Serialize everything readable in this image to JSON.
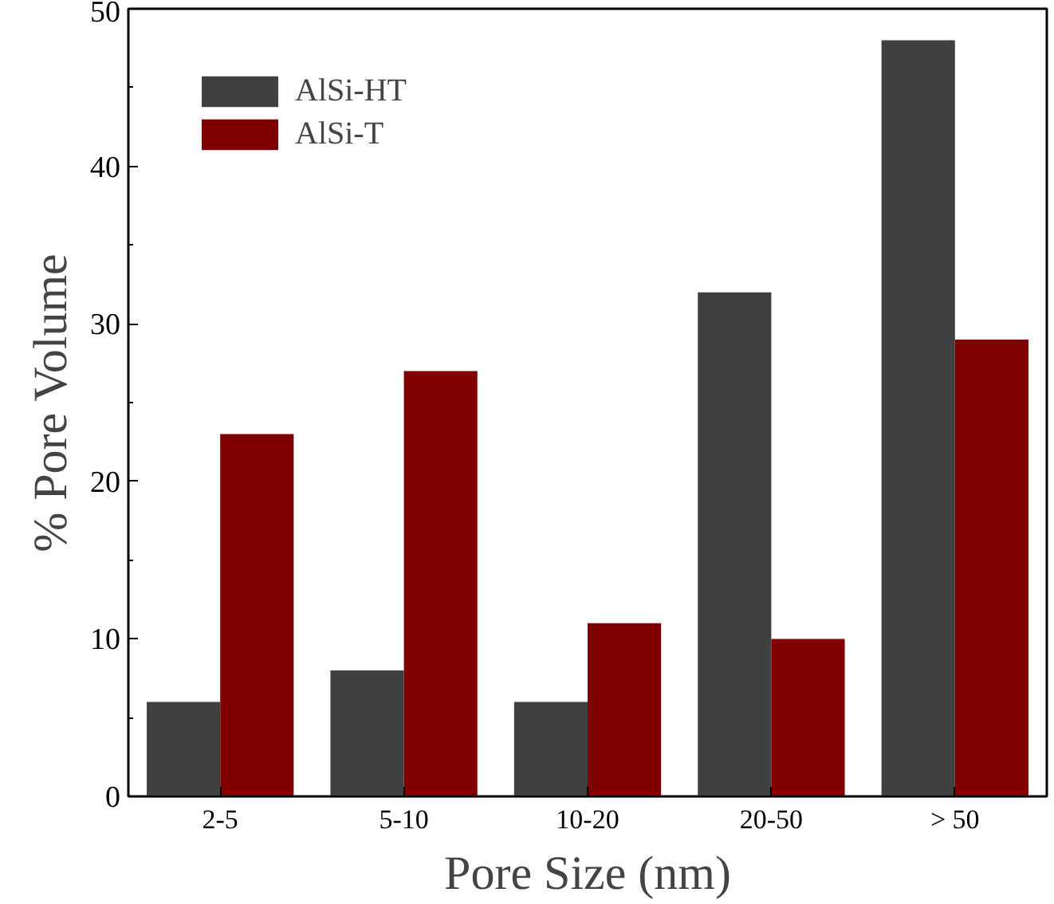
{
  "chart_data": {
    "type": "bar",
    "xlabel": "Pore Size (nm)",
    "ylabel": "% Pore Volume",
    "categories": [
      "2-5",
      "5-10",
      "10-20",
      "20-50",
      "> 50"
    ],
    "series": [
      {
        "name": "AlSi-HT",
        "color": "#404040",
        "values": [
          6,
          8,
          6,
          32,
          48
        ]
      },
      {
        "name": "AlSi-T",
        "color": "#7f0000",
        "values": [
          23,
          27,
          11,
          10,
          29
        ]
      }
    ],
    "ylim": [
      0,
      50
    ],
    "yticks": [
      0,
      10,
      20,
      30,
      40,
      50
    ],
    "grid": false,
    "legend": "top left"
  }
}
